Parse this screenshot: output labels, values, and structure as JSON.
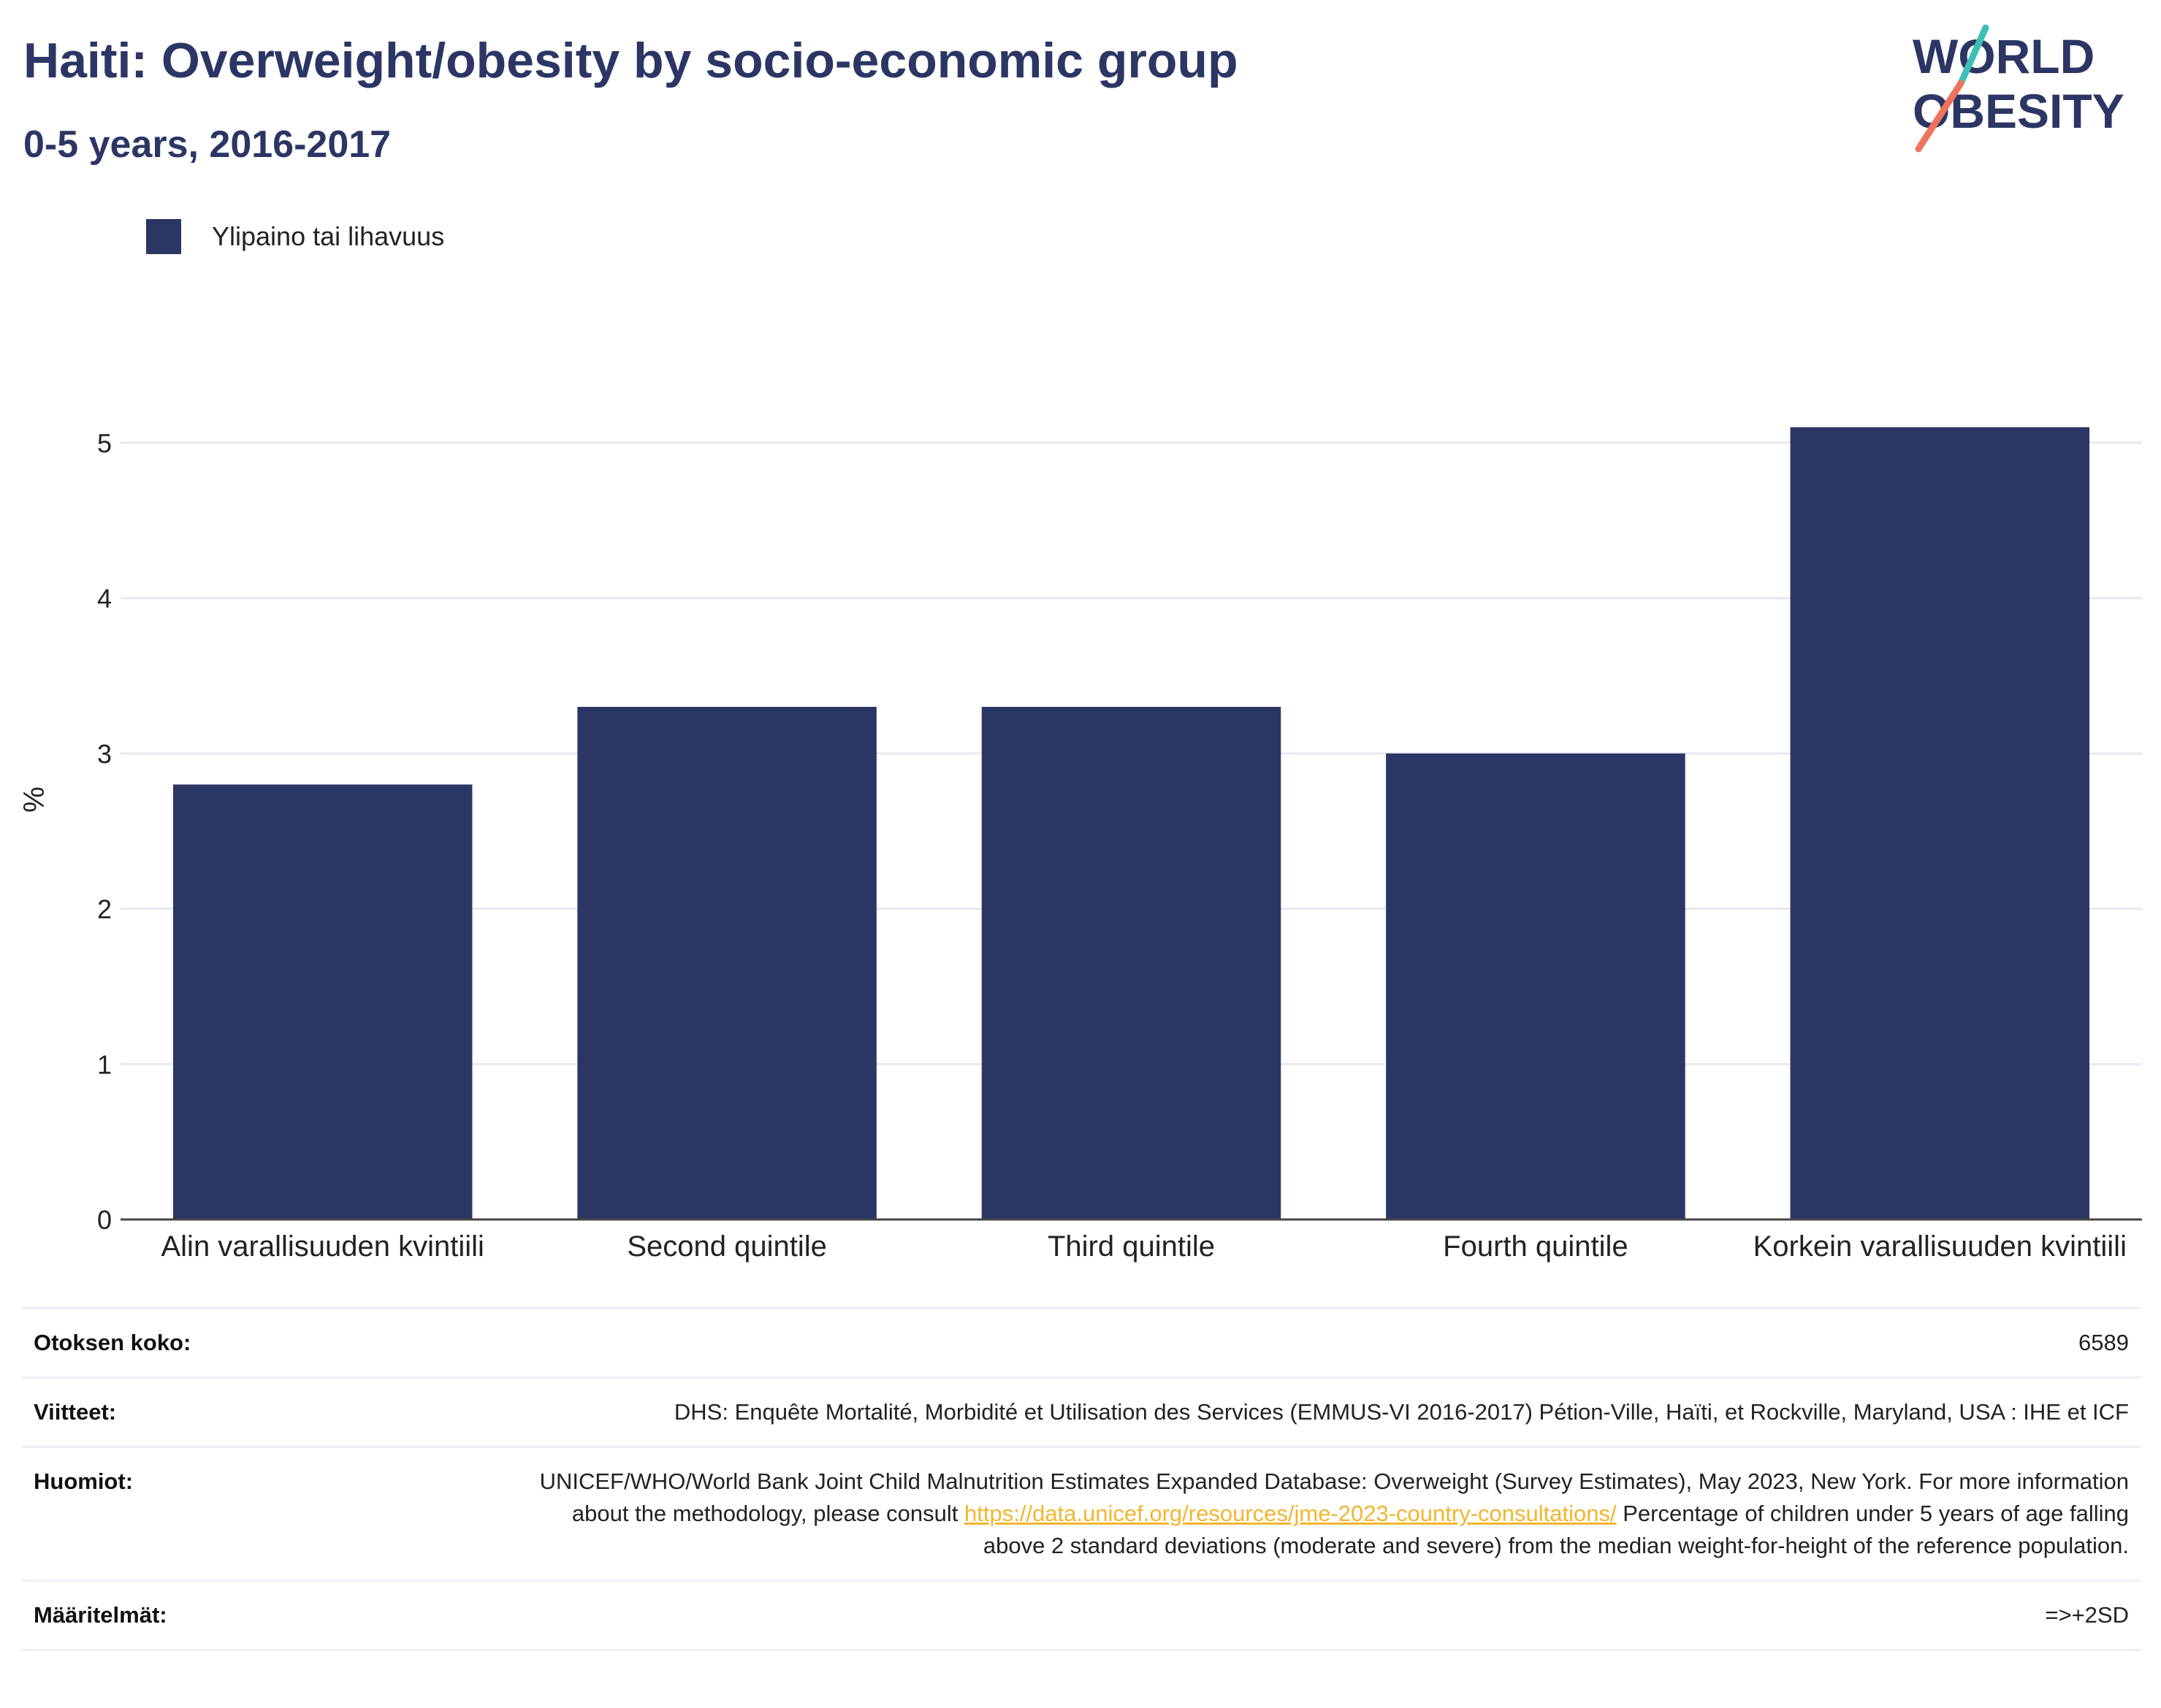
{
  "header": {
    "title": "Haiti: Overweight/obesity by socio-economic group",
    "subtitle": "0-5 years, 2016-2017"
  },
  "logo": {
    "line1": "WORLD",
    "line2": "OBESITY",
    "colors": {
      "text": "#2b3664",
      "slash_top": "#3cbfb6",
      "slash_bottom": "#f0735e"
    }
  },
  "colors": {
    "bar": "#2b3664",
    "grid": "#e6e8ef",
    "axis": "#444444"
  },
  "chart_data": {
    "type": "bar",
    "categories": [
      "Alin varallisuuden kvintiili",
      "Second quintile",
      "Third quintile",
      "Fourth quintile",
      "Korkein varallisuuden kvintiili"
    ],
    "series": [
      {
        "name": "Ylipaino tai lihavuus",
        "values": [
          2.8,
          3.3,
          3.3,
          3.0,
          5.1
        ]
      }
    ],
    "xlabel": "",
    "ylabel": "%",
    "ylim": [
      0,
      5.5
    ],
    "yticks": [
      0,
      1,
      2,
      3,
      4,
      5
    ],
    "grid": true,
    "legend": "top-left"
  },
  "info": {
    "sample_size": {
      "label": "Otoksen koko:",
      "value": "6589"
    },
    "references": {
      "label": "Viitteet:",
      "value": "DHS: Enquête Mortalité, Morbidité et Utilisation des Services (EMMUS-VI 2016-2017) Pétion-Ville, Haïti, et Rockville, Maryland, USA : IHE et ICF"
    },
    "notes": {
      "label": "Huomiot:",
      "text_before": "UNICEF/WHO/World Bank Joint Child Malnutrition Estimates Expanded Database: Overweight (Survey Estimates), May 2023, New York. For more information about the methodology, please consult ",
      "link": "https://data.unicef.org/resources/jme-2023-country-consultations/",
      "text_after": " Percentage of children under 5 years of age falling above 2 standard deviations (moderate and severe) from the median weight-for-height of the reference population."
    },
    "definitions": {
      "label": "Määritelmät:",
      "value": "=>+2SD"
    }
  }
}
